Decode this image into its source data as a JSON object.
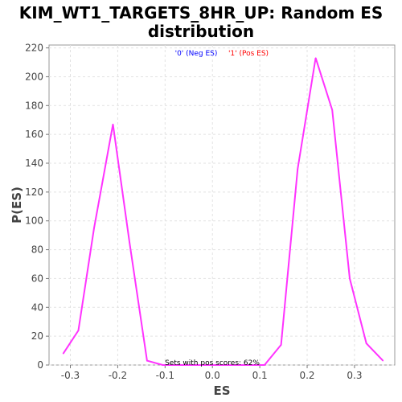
{
  "chart_data": {
    "type": "line",
    "title_lines": [
      "KIM_WT1_TARGETS_8HR_UP: Random ES",
      "distribution"
    ],
    "xlabel": "ES",
    "ylabel": "P(ES)",
    "xlim": [
      -0.345,
      0.385
    ],
    "ylim": [
      0,
      222
    ],
    "x_ticks": [
      -0.3,
      -0.2,
      -0.1,
      0.0,
      0.1,
      0.2,
      0.3
    ],
    "x_tick_labels": [
      "-0.3",
      "-0.2",
      "-0.1",
      "0.0",
      "0.1",
      "0.2",
      "0.3"
    ],
    "y_ticks": [
      0,
      20,
      40,
      60,
      80,
      100,
      120,
      140,
      160,
      180,
      200,
      220
    ],
    "y_tick_labels": [
      "0",
      "20",
      "40",
      "60",
      "80",
      "100",
      "120",
      "140",
      "160",
      "180",
      "200",
      "220"
    ],
    "grid": true,
    "legend_placement": "top-center",
    "legend": [
      {
        "label": "'0' (Neg ES)",
        "color": "#0000ff"
      },
      {
        "label": "'1' (Pos ES)",
        "color": "#ff0000"
      }
    ],
    "annotation": "Sets with pos scores: 62%",
    "series": [
      {
        "color": "#ff33ff",
        "x": [
          -0.315,
          -0.283,
          -0.25,
          -0.21,
          -0.175,
          -0.138,
          -0.105,
          -0.07,
          -0.035,
          0.0,
          0.035,
          0.07,
          0.11,
          0.145,
          0.18,
          0.218,
          0.253,
          0.29,
          0.325,
          0.36
        ],
        "y": [
          8,
          24,
          95,
          167,
          85,
          3,
          0,
          0,
          0,
          0,
          0,
          0,
          0,
          14,
          136,
          213,
          177,
          60,
          15,
          3
        ]
      }
    ]
  }
}
